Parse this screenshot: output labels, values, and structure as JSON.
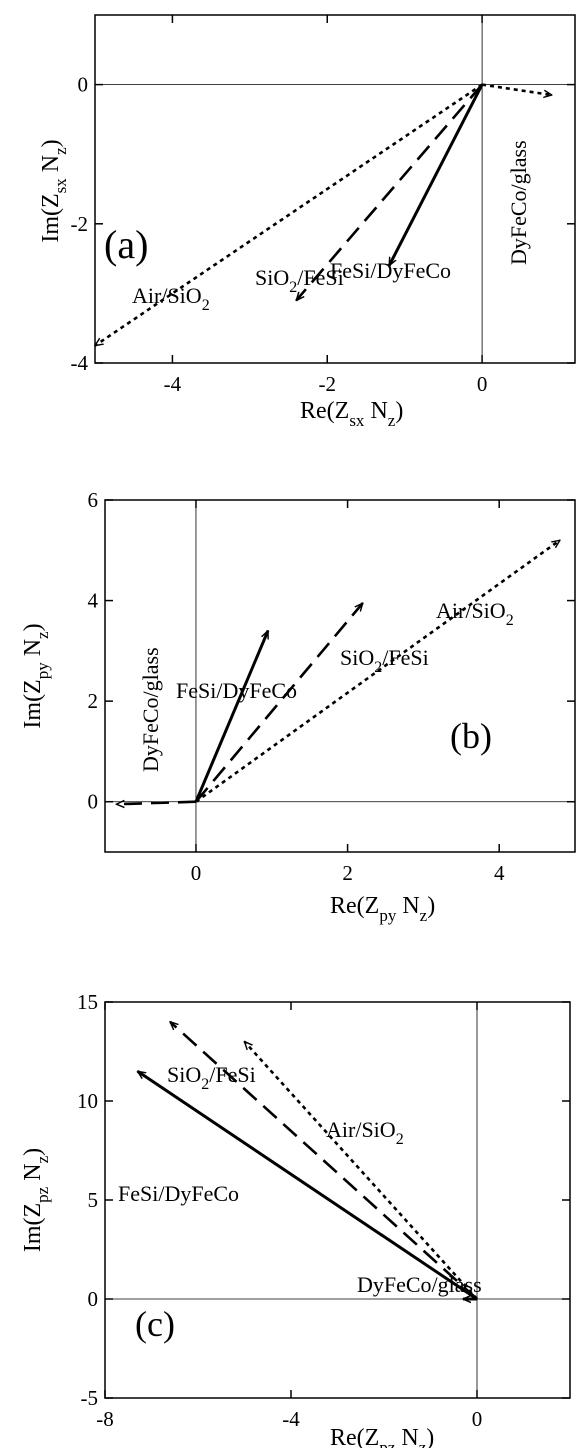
{
  "chart_data": [
    {
      "type": "vector",
      "panel_label": "(a)",
      "xlabel": {
        "main": "Re(Z",
        "sub": "sx",
        "mid": " N",
        "sub2": "z",
        "end": ")"
      },
      "ylabel": {
        "main": "Im(Z",
        "sub": "sx",
        "mid": " N",
        "sub2": "z",
        "end": ")"
      },
      "xlim": [
        -5,
        1.2
      ],
      "ylim": [
        -4,
        1
      ],
      "xticks": [
        -4,
        -2,
        0
      ],
      "yticks": [
        -4,
        -2,
        0
      ],
      "series": [
        {
          "name": "Air/SiO2",
          "style": "dotted",
          "start": [
            0,
            0
          ],
          "end": [
            -5,
            -3.75
          ]
        },
        {
          "name": "SiO2/FeSi",
          "style": "dashed",
          "start": [
            0,
            0
          ],
          "end": [
            -2.4,
            -3.1
          ]
        },
        {
          "name": "FeSi/DyFeCo",
          "style": "solid",
          "start": [
            0,
            0
          ],
          "end": [
            -1.2,
            -2.6
          ]
        },
        {
          "name": "DyFeCo/glass",
          "style": "dotted",
          "start": [
            0,
            0
          ],
          "end": [
            0.9,
            -0.15
          ]
        }
      ]
    },
    {
      "type": "vector",
      "panel_label": "(b)",
      "xlabel": {
        "main": "Re(Z",
        "sub": "py",
        "mid": " N",
        "sub2": "z",
        "end": ")"
      },
      "ylabel": {
        "main": "Im(Z",
        "sub": "py",
        "mid": " N",
        "sub2": "z",
        "end": ")"
      },
      "xlim": [
        -1.2,
        5
      ],
      "ylim": [
        -1,
        6
      ],
      "xticks": [
        0,
        2,
        4
      ],
      "yticks": [
        0,
        2,
        4,
        6
      ],
      "series": [
        {
          "name": "Air/SiO2",
          "style": "dotted",
          "start": [
            0,
            0
          ],
          "end": [
            4.8,
            5.2
          ]
        },
        {
          "name": "SiO2/FeSi",
          "style": "dashed",
          "start": [
            0,
            0
          ],
          "end": [
            2.2,
            3.95
          ]
        },
        {
          "name": "FeSi/DyFeCo",
          "style": "solid",
          "start": [
            0,
            0
          ],
          "end": [
            0.95,
            3.4
          ]
        },
        {
          "name": "DyFeCo/glass",
          "style": "dashed",
          "start": [
            0,
            0
          ],
          "end": [
            -1.05,
            -0.05
          ]
        }
      ]
    },
    {
      "type": "vector",
      "panel_label": "(c)",
      "xlabel": {
        "main": "Re(Z",
        "sub": "pz",
        "mid": " N",
        "sub2": "z",
        "end": ")"
      },
      "ylabel": {
        "main": "Im(Z",
        "sub": "pz",
        "mid": " N",
        "sub2": "z",
        "end": ")"
      },
      "xlim": [
        -8,
        2
      ],
      "ylim": [
        -5,
        15
      ],
      "xticks": [
        -8,
        -4,
        0
      ],
      "yticks": [
        -5,
        0,
        5,
        10,
        15
      ],
      "series": [
        {
          "name": "Air/SiO2",
          "style": "dotted",
          "start": [
            0,
            0
          ],
          "end": [
            -5,
            13
          ]
        },
        {
          "name": "SiO2/FeSi",
          "style": "dashed",
          "start": [
            0,
            0
          ],
          "end": [
            -6.6,
            14
          ]
        },
        {
          "name": "FeSi/DyFeCo",
          "style": "solid",
          "start": [
            0,
            0
          ],
          "end": [
            -7.3,
            11.5
          ]
        },
        {
          "name": "DyFeCo/glass",
          "style": "solid",
          "start": [
            0,
            0
          ],
          "end": [
            -0.3,
            0
          ]
        }
      ]
    }
  ],
  "vector_labels": {
    "a": {
      "air": {
        "a": "Air/SiO",
        "b": "2"
      },
      "sio2": {
        "a": "SiO",
        "b": "2",
        "c": "/FeSi"
      },
      "fesi": "FeSi/DyFeCo",
      "dyfeco": "DyFeCo/glass"
    },
    "b": {
      "air": {
        "a": "Air/SiO",
        "b": "2"
      },
      "sio2": {
        "a": "SiO",
        "b": "2",
        "c": "/FeSi"
      },
      "fesi": "FeSi/DyFeCo",
      "dyfeco": "DyFeCo/glass"
    },
    "c": {
      "air": {
        "a": "Air/SiO",
        "b": "2"
      },
      "sio2": {
        "a": "SiO",
        "b": "2",
        "c": "/FeSi"
      },
      "fesi": "FeSi/DyFeCo",
      "dyfeco": "DyFeCo/glass"
    }
  }
}
